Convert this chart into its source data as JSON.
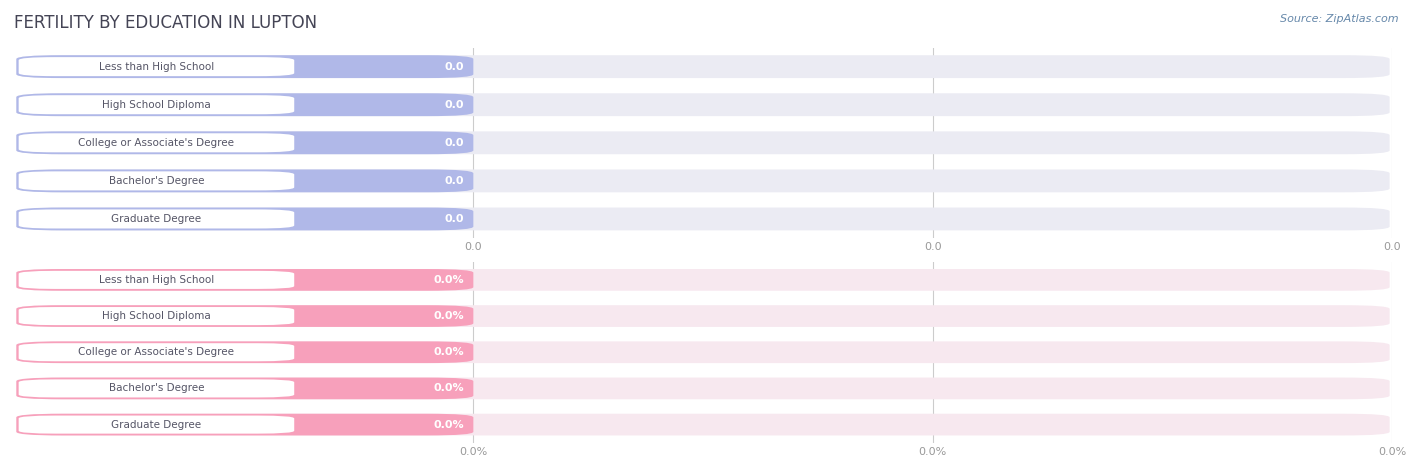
{
  "title": "FERTILITY BY EDUCATION IN LUPTON",
  "source": "Source: ZipAtlas.com",
  "categories": [
    "Less than High School",
    "High School Diploma",
    "College or Associate's Degree",
    "Bachelor's Degree",
    "Graduate Degree"
  ],
  "top_values": [
    0.0,
    0.0,
    0.0,
    0.0,
    0.0
  ],
  "bottom_values": [
    0.0,
    0.0,
    0.0,
    0.0,
    0.0
  ],
  "top_bar_color": "#b0b8e8",
  "top_bar_bg": "#ebebf3",
  "bottom_bar_color": "#f7a0bb",
  "bottom_bar_bg": "#f7e8ef",
  "label_color": "#555566",
  "title_color": "#444455",
  "source_color": "#6688aa",
  "bg_color": "#ffffff",
  "tick_label_color": "#999999",
  "grid_color": "#cccccc",
  "white_pill_color": "#ffffff"
}
